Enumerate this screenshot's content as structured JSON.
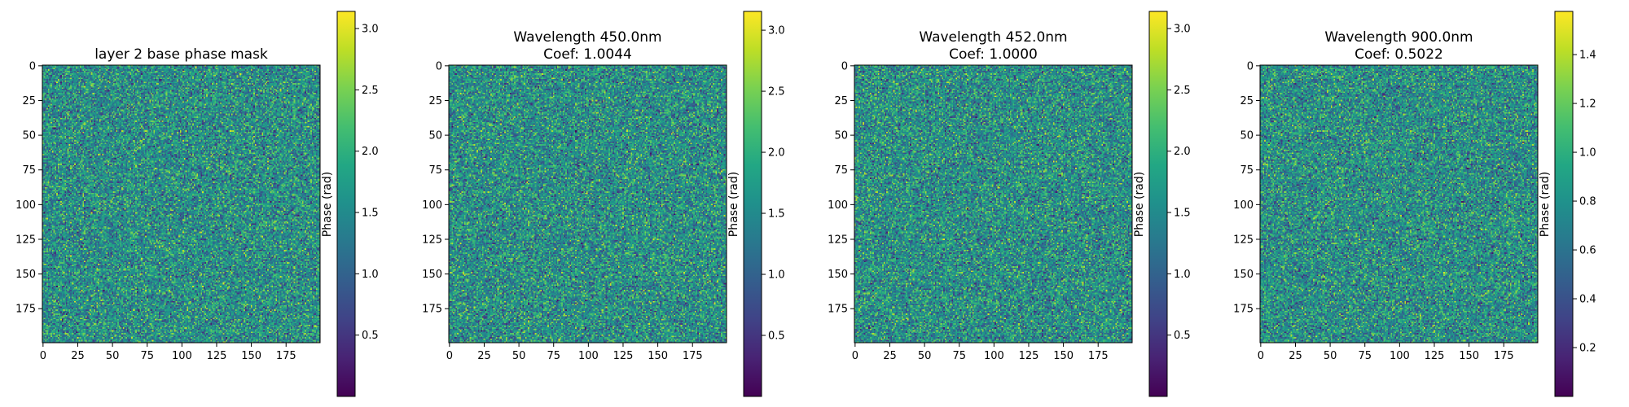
{
  "colormap": "viridis",
  "chart_data": [
    {
      "type": "heatmap",
      "title": [
        "layer 2 base phase mask"
      ],
      "xlim": [
        0,
        199
      ],
      "ylim": [
        0,
        199
      ],
      "x_ticks": [
        "0",
        "25",
        "50",
        "75",
        "100",
        "125",
        "150",
        "175"
      ],
      "y_ticks": [
        "0",
        "25",
        "50",
        "75",
        "100",
        "125",
        "150",
        "175"
      ],
      "colorbar": {
        "label": "Phase (rad)",
        "range": [
          0.0,
          3.14
        ],
        "ticks": [
          "0.5",
          "1.0",
          "1.5",
          "2.0",
          "2.5",
          "3.0"
        ]
      }
    },
    {
      "type": "heatmap",
      "title": [
        "Wavelength 450.0nm",
        "Coef: 1.0044"
      ],
      "xlim": [
        0,
        199
      ],
      "ylim": [
        0,
        199
      ],
      "x_ticks": [
        "0",
        "25",
        "50",
        "75",
        "100",
        "125",
        "150",
        "175"
      ],
      "y_ticks": [
        "0",
        "25",
        "50",
        "75",
        "100",
        "125",
        "150",
        "175"
      ],
      "colorbar": {
        "label": "Phase (rad)",
        "range": [
          0.0,
          3.154
        ],
        "ticks": [
          "0.5",
          "1.0",
          "1.5",
          "2.0",
          "2.5",
          "3.0"
        ]
      }
    },
    {
      "type": "heatmap",
      "title": [
        "Wavelength 452.0nm",
        "Coef: 1.0000"
      ],
      "xlim": [
        0,
        199
      ],
      "ylim": [
        0,
        199
      ],
      "x_ticks": [
        "0",
        "25",
        "50",
        "75",
        "100",
        "125",
        "150",
        "175"
      ],
      "y_ticks": [
        "0",
        "25",
        "50",
        "75",
        "100",
        "125",
        "150",
        "175"
      ],
      "colorbar": {
        "label": "Phase (rad)",
        "range": [
          0.0,
          3.14
        ],
        "ticks": [
          "0.5",
          "1.0",
          "1.5",
          "2.0",
          "2.5",
          "3.0"
        ]
      }
    },
    {
      "type": "heatmap",
      "title": [
        "Wavelength 900.0nm",
        "Coef: 0.5022"
      ],
      "xlim": [
        0,
        199
      ],
      "ylim": [
        0,
        199
      ],
      "x_ticks": [
        "0",
        "25",
        "50",
        "75",
        "100",
        "125",
        "150",
        "175"
      ],
      "y_ticks": [
        "0",
        "25",
        "50",
        "75",
        "100",
        "125",
        "150",
        "175"
      ],
      "colorbar": {
        "label": "Phase (rad)",
        "range": [
          0.0,
          1.577
        ],
        "ticks": [
          "0.2",
          "0.4",
          "0.6",
          "0.8",
          "1.0",
          "1.2",
          "1.4"
        ]
      }
    }
  ]
}
